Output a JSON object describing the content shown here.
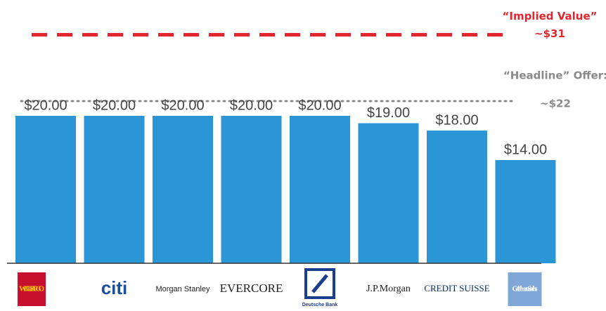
{
  "chart_data": {
    "type": "bar",
    "categories": [
      "WELLS FARGO",
      "citi",
      "Morgan Stanley",
      "EVERCORE",
      "Deutsche Bank",
      "J.P.Morgan",
      "CREDIT SUISSE",
      "Goldman Sachs"
    ],
    "values": [
      20,
      20,
      20,
      20,
      20,
      19,
      18,
      14
    ],
    "value_labels": [
      "$20.00",
      "$20.00",
      "$20.00",
      "$20.00",
      "$20.00",
      "$19.00",
      "$18.00",
      "$14.00"
    ],
    "color": "#2b96d6",
    "ylim": [
      0,
      35
    ],
    "reference_lines": [
      {
        "value": 31,
        "label": "“Implied Value”",
        "sublabel": "~$31",
        "color": "#e3262e",
        "style": "dashed"
      },
      {
        "value": 22,
        "label": "“Headline” Offer:",
        "sublabel": "~$22",
        "color": "#8a8a8a",
        "style": "dotted"
      }
    ]
  }
}
